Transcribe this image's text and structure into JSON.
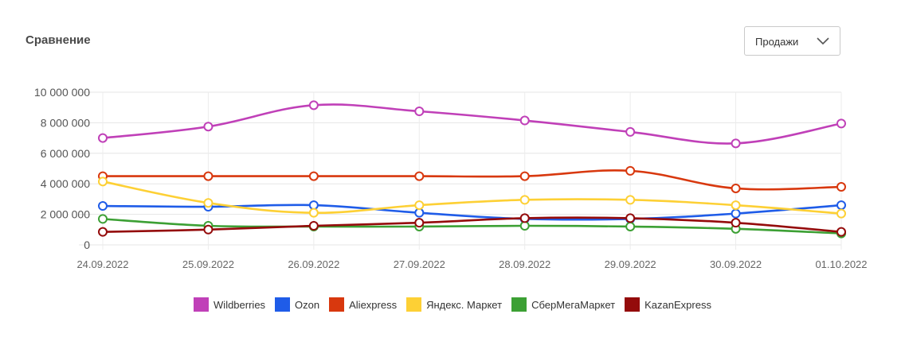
{
  "header": {
    "title": "Сравнение"
  },
  "metric_select": {
    "value": "Продажи",
    "icon": "chevron-down-icon"
  },
  "chart_data": {
    "type": "line",
    "categories": [
      "24.09.2022",
      "25.09.2022",
      "26.09.2022",
      "27.09.2022",
      "28.09.2022",
      "29.09.2022",
      "30.09.2022",
      "01.10.2022"
    ],
    "y_ticks": [
      "0",
      "2 000 000",
      "4 000 000",
      "6 000 000",
      "8 000 000",
      "10 000 000"
    ],
    "ylim": [
      0,
      10000000
    ],
    "grid": true,
    "legend_position": "bottom",
    "series": [
      {
        "name": "Wildberries",
        "color": "#c040b8",
        "values": [
          7000000,
          7750000,
          9150000,
          8750000,
          8150000,
          7400000,
          6650000,
          7950000
        ]
      },
      {
        "name": "Ozon",
        "color": "#1f5ce8",
        "values": [
          2550000,
          2500000,
          2600000,
          2100000,
          1700000,
          1700000,
          2050000,
          2600000
        ]
      },
      {
        "name": "Aliexpress",
        "color": "#d8380e",
        "values": [
          4500000,
          4500000,
          4500000,
          4500000,
          4500000,
          4850000,
          3700000,
          3800000
        ]
      },
      {
        "name": "Яндекс. Маркет",
        "color": "#fdd035",
        "values": [
          4150000,
          2750000,
          2100000,
          2600000,
          2950000,
          2950000,
          2600000,
          2050000
        ]
      },
      {
        "name": "СберМегаМаркет",
        "color": "#3ca034",
        "values": [
          1700000,
          1250000,
          1200000,
          1200000,
          1250000,
          1200000,
          1050000,
          750000
        ]
      },
      {
        "name": "KazanExpress",
        "color": "#940b0b",
        "values": [
          850000,
          1000000,
          1250000,
          1450000,
          1750000,
          1750000,
          1450000,
          850000
        ]
      }
    ]
  }
}
